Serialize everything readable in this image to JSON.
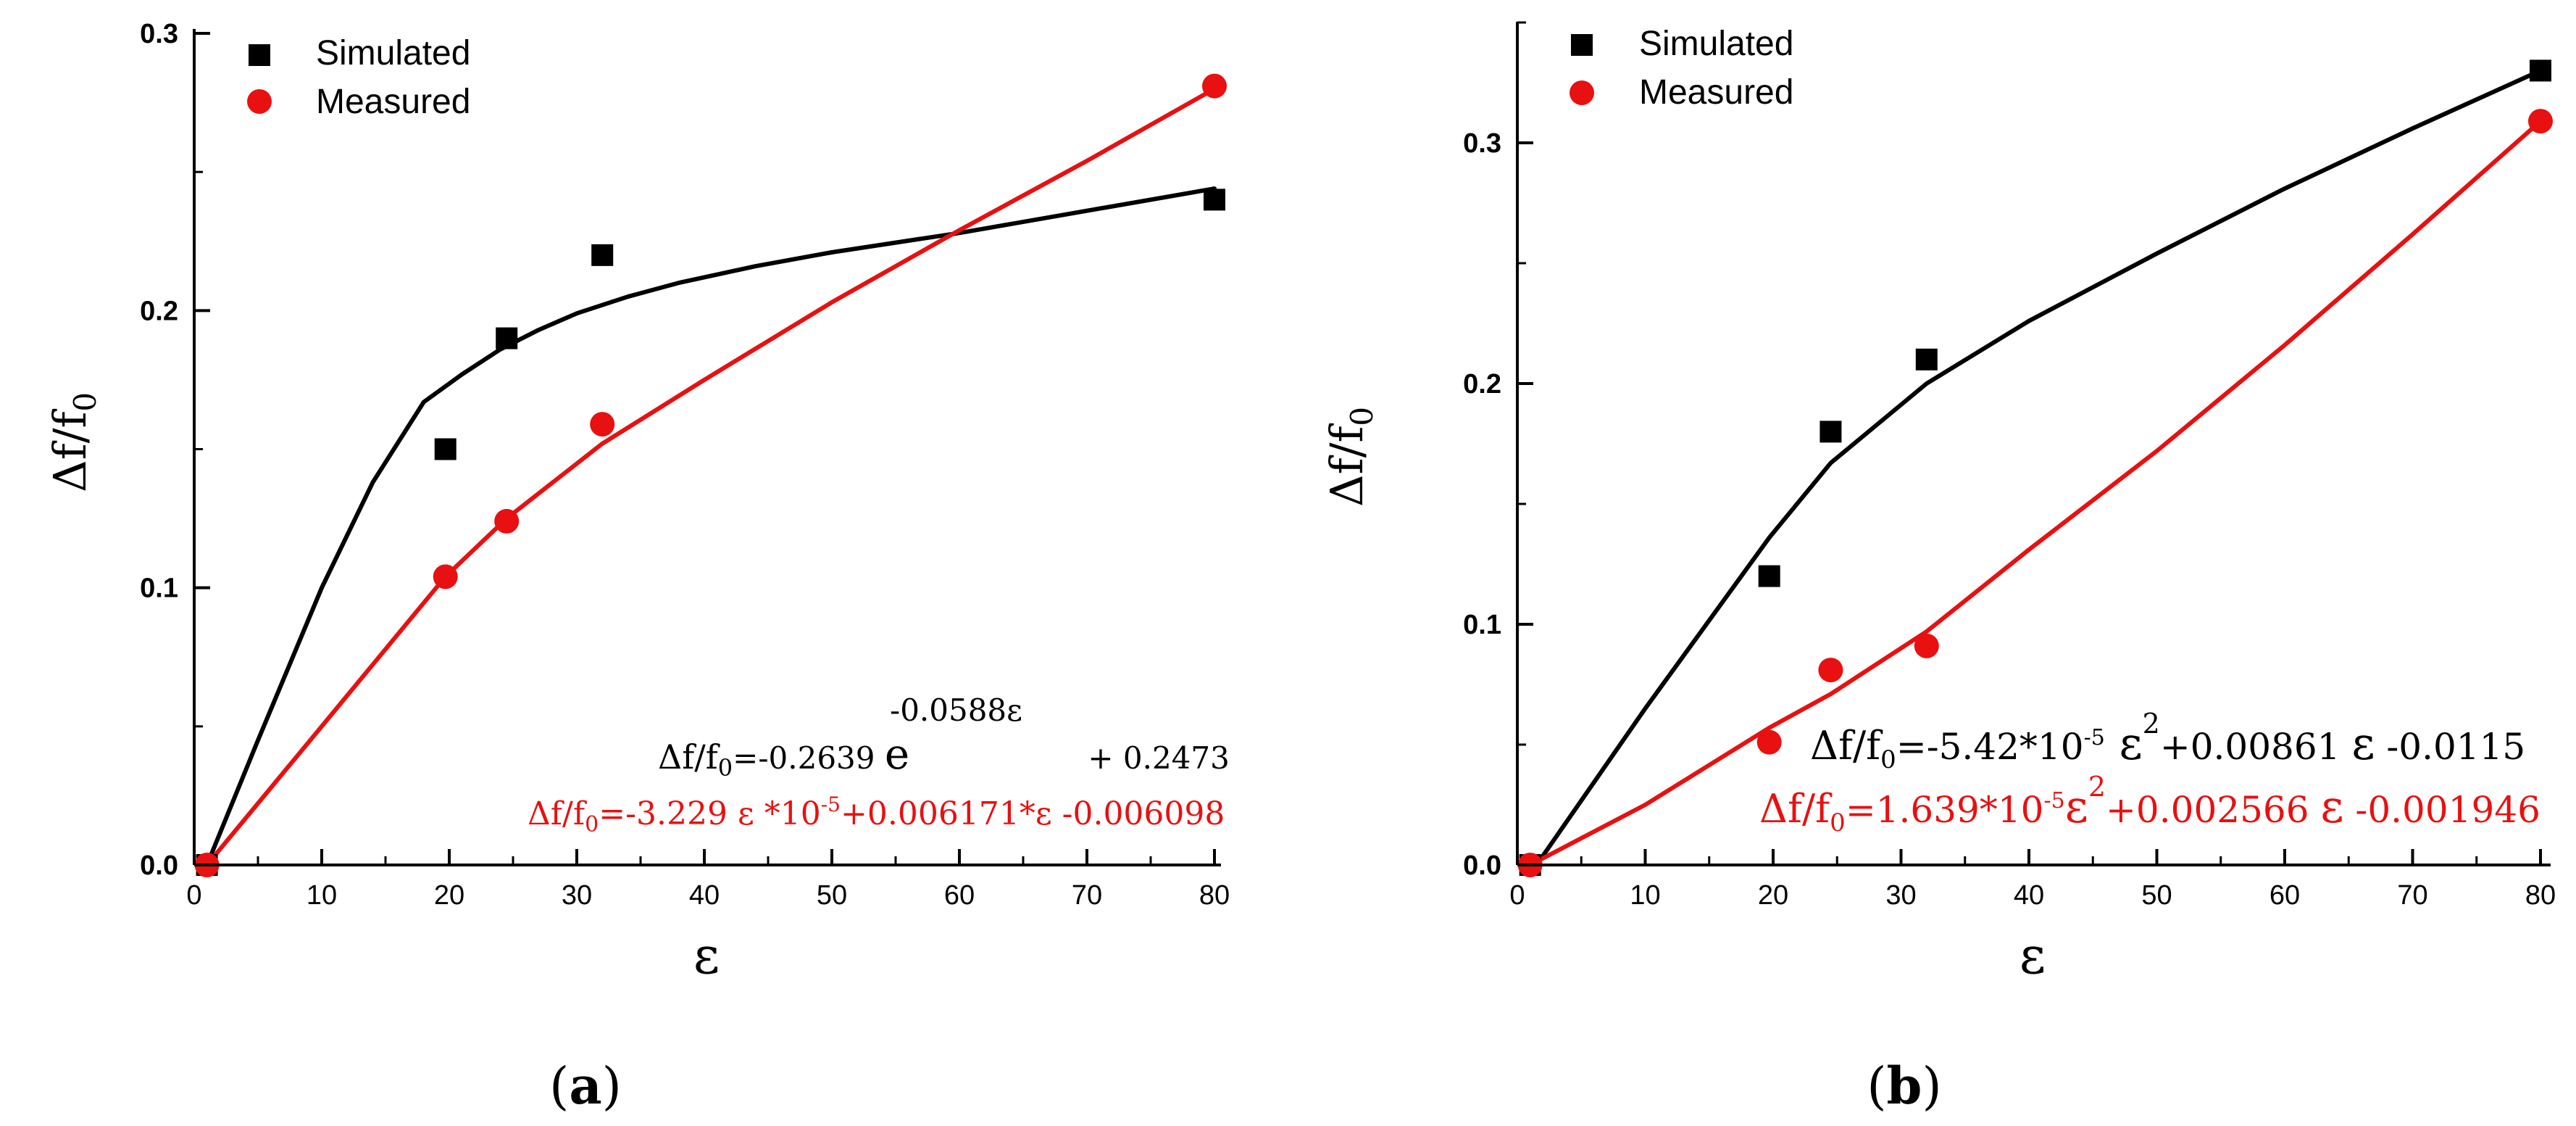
{
  "colors": {
    "simulated": "#000000",
    "measured": "#e81010",
    "axis": "#000000",
    "background": "#ffffff"
  },
  "chart_data": [
    {
      "id": "a",
      "type": "scatter",
      "caption_open": "(",
      "caption_letter": "a",
      "caption_close": ")",
      "xlabel": "ε",
      "ylabel_main": "Δf/f",
      "ylabel_sub": "0",
      "xlim": [
        0,
        80
      ],
      "ylim": [
        0,
        0.3
      ],
      "xticks": [
        0,
        10,
        20,
        30,
        40,
        50,
        60,
        70,
        80
      ],
      "xtick_labels": [
        "0",
        "10",
        "20",
        "30",
        "40",
        "50",
        "60",
        "70",
        "80"
      ],
      "yticks": [
        0,
        0.1,
        0.2,
        0.3
      ],
      "ytick_labels": [
        "0.0",
        "0.1",
        "0.2",
        "0.3"
      ],
      "legend_position": "top-left",
      "series": [
        {
          "name": "Simulated",
          "marker": "square",
          "color_key": "simulated",
          "x": [
            1,
            19.7,
            24.5,
            32,
            80
          ],
          "y": [
            0,
            0.15,
            0.19,
            0.22,
            0.24
          ]
        },
        {
          "name": "Measured",
          "marker": "circle",
          "color_key": "measured",
          "x": [
            1,
            19.7,
            24.5,
            32,
            80
          ],
          "y": [
            0,
            0.104,
            0.124,
            0.159,
            0.281
          ]
        }
      ],
      "fits": [
        {
          "name": "simulated-fit",
          "color_key": "simulated",
          "x": [
            1,
            5,
            10,
            14,
            18,
            21,
            24,
            27,
            30,
            34,
            38,
            44,
            50,
            60,
            70,
            80
          ],
          "y": [
            0,
            0.045,
            0.1,
            0.138,
            0.167,
            0.177,
            0.186,
            0.193,
            0.199,
            0.205,
            0.21,
            0.216,
            0.221,
            0.228,
            0.236,
            0.244
          ]
        },
        {
          "name": "measured-fit",
          "color_key": "measured",
          "x": [
            1,
            10,
            19.7,
            24.5,
            32,
            40,
            50,
            60,
            70,
            80
          ],
          "y": [
            0,
            0.05,
            0.104,
            0.125,
            0.152,
            0.175,
            0.203,
            0.229,
            0.254,
            0.28
          ]
        }
      ],
      "equations": {
        "simulated": {
          "lhs": "Δf/f",
          "lhs_sub": "0",
          "rhs_1": "=-0.2639 ",
          "base": "e",
          "exponent": "-0.0588ε",
          "rhs_2": " + 0.2473"
        },
        "measured": {
          "lhs": "Δf/f",
          "lhs_sub": "0",
          "part_1": "=-3.229 ε *10",
          "sup_1": "-5",
          "part_2": "+0.006171*ε -0.006098"
        }
      }
    },
    {
      "id": "b",
      "type": "scatter",
      "caption_open": "(",
      "caption_letter": "b",
      "caption_close": ")",
      "xlabel": "ε",
      "ylabel_main": "Δf/f",
      "ylabel_sub": "0",
      "xlim": [
        0,
        80
      ],
      "ylim": [
        0,
        0.35
      ],
      "xticks": [
        0,
        10,
        20,
        30,
        40,
        50,
        60,
        70,
        80
      ],
      "xtick_labels": [
        "0",
        "10",
        "20",
        "30",
        "40",
        "50",
        "60",
        "70",
        "80"
      ],
      "yticks": [
        0,
        0.1,
        0.2,
        0.3
      ],
      "ytick_labels": [
        "0.0",
        "0.1",
        "0.2",
        "0.3"
      ],
      "legend_position": "top-left",
      "series": [
        {
          "name": "Simulated",
          "marker": "square",
          "color_key": "simulated",
          "x": [
            1,
            19.7,
            24.5,
            32,
            80
          ],
          "y": [
            0,
            0.12,
            0.18,
            0.21,
            0.33
          ]
        },
        {
          "name": "Measured",
          "marker": "circle",
          "color_key": "measured",
          "x": [
            1,
            19.7,
            24.5,
            32,
            80
          ],
          "y": [
            0,
            0.051,
            0.081,
            0.091,
            0.309
          ]
        }
      ],
      "fits": [
        {
          "name": "simulated-fit",
          "color_key": "simulated",
          "x": [
            1.5,
            10,
            19.7,
            24.5,
            32,
            40,
            50,
            60,
            70,
            80
          ],
          "y": [
            0,
            0.065,
            0.136,
            0.167,
            0.2,
            0.226,
            0.254,
            0.281,
            0.306,
            0.33
          ]
        },
        {
          "name": "measured-fit",
          "color_key": "measured",
          "x": [
            1,
            10,
            19.7,
            24.5,
            32,
            40,
            50,
            60,
            70,
            80
          ],
          "y": [
            0,
            0.025,
            0.057,
            0.071,
            0.097,
            0.131,
            0.172,
            0.216,
            0.262,
            0.309
          ]
        }
      ],
      "equations": {
        "simulated": {
          "lhs": "Δf/f",
          "lhs_sub": "0",
          "part_1": "=-5.42*10",
          "sup_1": "-5",
          "eps_1": " ε",
          "sup_2": "2",
          "part_2": "+0.00861 ",
          "eps_2": "ε",
          "part_3": " -0.0115"
        },
        "measured": {
          "lhs": "Δf/f",
          "lhs_sub": "0",
          "part_1": "=1.639*10",
          "sup_1": "-5",
          "eps_1": "ε",
          "sup_2": "2",
          "part_2": "+0.002566 ",
          "eps_2": "ε",
          "part_3": " -0.001946"
        }
      }
    }
  ]
}
